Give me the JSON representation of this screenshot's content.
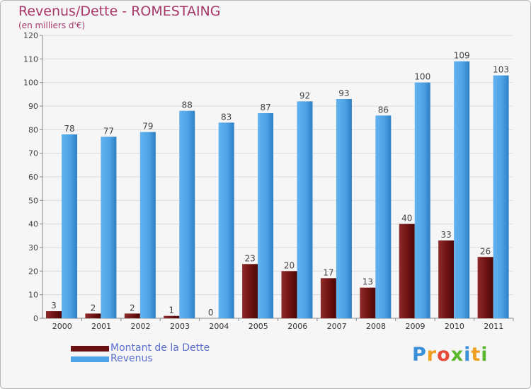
{
  "chart_data": {
    "type": "bar",
    "title": "Revenus/Dette - ROMESTAING",
    "subtitle": "(en milliers d'€)",
    "categories": [
      "2000",
      "2001",
      "2002",
      "2003",
      "2004",
      "2005",
      "2006",
      "2007",
      "2008",
      "2009",
      "2010",
      "2011"
    ],
    "series": [
      {
        "name": "Montant de la Dette",
        "color": "#7a1a1a",
        "values": [
          3,
          2,
          2,
          1,
          0,
          23,
          20,
          17,
          13,
          40,
          33,
          26
        ]
      },
      {
        "name": "Revenus",
        "color": "#4ea3e6",
        "values": [
          78,
          77,
          79,
          88,
          83,
          87,
          92,
          93,
          86,
          100,
          109,
          103
        ]
      }
    ],
    "ylim": [
      0,
      120
    ],
    "yticks": [
      0,
      10,
      20,
      30,
      40,
      50,
      60,
      70,
      80,
      90,
      100,
      110,
      120
    ],
    "grid": true,
    "xlabel": "",
    "ylabel": ""
  },
  "legend": {
    "debt_label": "Montant de la Dette",
    "revenue_label": "Revenus",
    "debt_color": "#6b1010",
    "revenue_color": "#4ea3e6"
  },
  "logo": {
    "letters": [
      "P",
      "r",
      "o",
      "x",
      "i",
      "t",
      "i"
    ],
    "colors": [
      "#3a8fd9",
      "#f0a020",
      "#e84a3a",
      "#5cb82e",
      "#3a8fd9",
      "#f0a020",
      "#5cb82e"
    ]
  }
}
